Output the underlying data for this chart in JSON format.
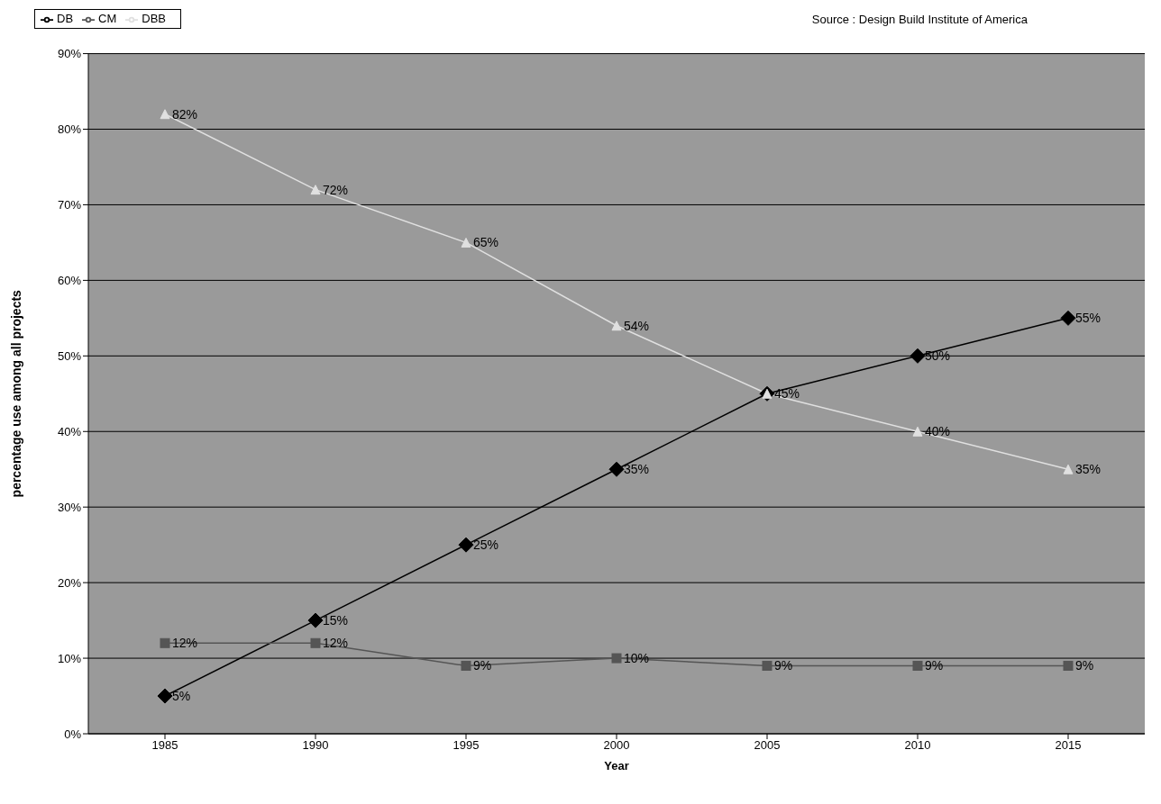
{
  "chart_data": {
    "type": "line",
    "xlabel": "Year",
    "ylabel": "percentage use among all projects",
    "annotations": [
      "Source : Design Build Institute of America"
    ],
    "categories": [
      "1985",
      "1990",
      "1995",
      "2000",
      "2005",
      "2010",
      "2015"
    ],
    "series": [
      {
        "name": "DB",
        "color": "#000000",
        "marker": "diamond",
        "values": [
          5,
          15,
          25,
          35,
          45,
          50,
          55
        ],
        "value_labels": [
          "5%",
          "15%",
          "25%",
          "35%",
          null,
          "50%",
          "55%"
        ]
      },
      {
        "name": "CM",
        "color": "#555555",
        "marker": "square",
        "values": [
          12,
          12,
          9,
          10,
          9,
          9,
          9
        ],
        "value_labels": [
          "12%",
          "12%",
          "9%",
          "10%",
          "9%",
          "9%",
          "9%"
        ]
      },
      {
        "name": "DBB",
        "color": "#e0e0e0",
        "marker": "triangle",
        "values": [
          82,
          72,
          65,
          54,
          45,
          40,
          35
        ],
        "value_labels": [
          "82%",
          "72%",
          "65%",
          "54%",
          "45%",
          "40%",
          "35%"
        ]
      }
    ],
    "ylim": [
      0,
      90
    ],
    "yticks": [
      {
        "value": 0,
        "label": "0%"
      },
      {
        "value": 10,
        "label": "10%"
      },
      {
        "value": 20,
        "label": "20%"
      },
      {
        "value": 30,
        "label": "30%"
      },
      {
        "value": 40,
        "label": "40%"
      },
      {
        "value": 50,
        "label": "50%"
      },
      {
        "value": 60,
        "label": "60%"
      },
      {
        "value": 70,
        "label": "70%"
      },
      {
        "value": 80,
        "label": "80%"
      },
      {
        "value": 90,
        "label": "90%"
      }
    ],
    "grid": "y",
    "legend": "top left"
  }
}
